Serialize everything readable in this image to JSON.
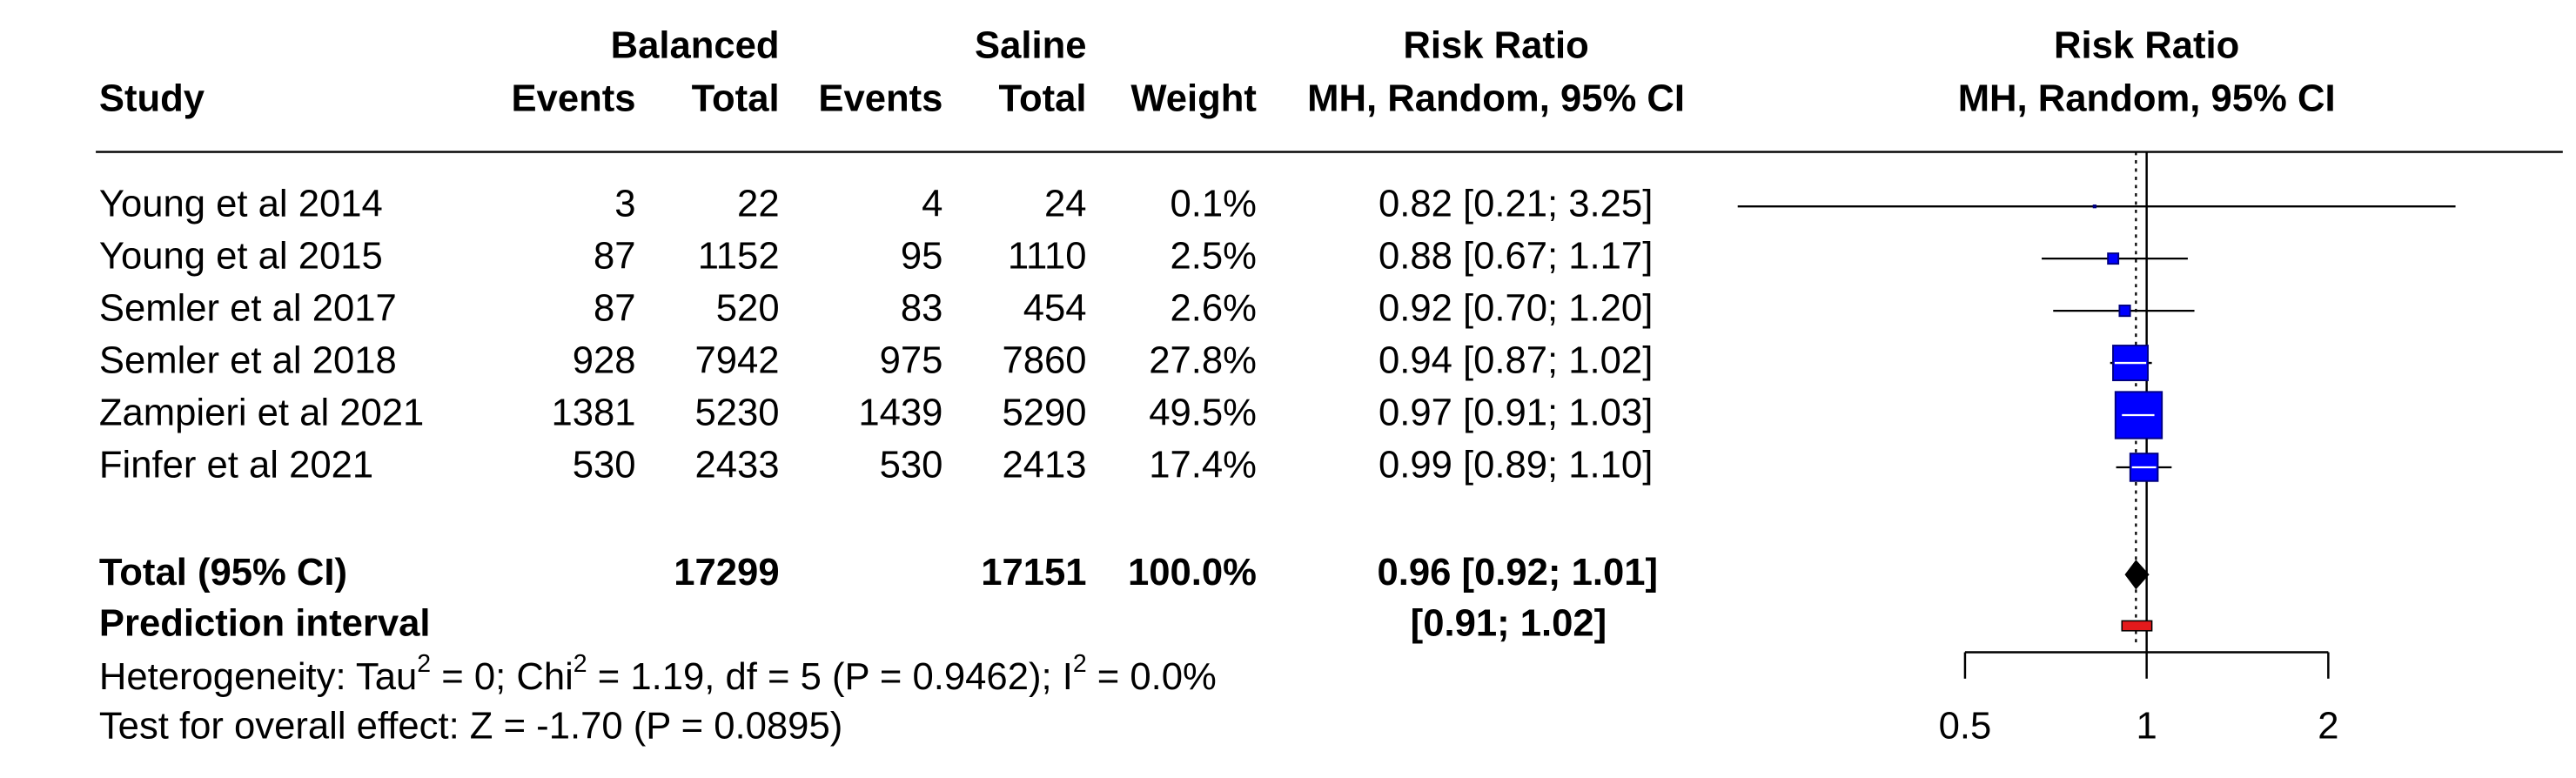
{
  "chart_data": {
    "type": "forest",
    "groups": [
      "Balanced",
      "Saline"
    ],
    "columns": [
      "Study",
      "Events",
      "Total",
      "Events",
      "Total",
      "Weight",
      "Risk Ratio",
      "MH, Random, 95% CI"
    ],
    "plot_title": [
      "Risk Ratio",
      "MH, Random, 95% CI"
    ],
    "studies": [
      "Young et al 2014",
      "Young et al 2015",
      "Semler et al 2017",
      "Semler et al 2018",
      "Zampieri et al 2021",
      "Finfer et al 2021"
    ],
    "events_a": [
      3,
      87,
      87,
      928,
      1381,
      530
    ],
    "total_a": [
      22,
      1152,
      520,
      7942,
      5230,
      2433
    ],
    "events_b": [
      4,
      95,
      83,
      975,
      1439,
      530
    ],
    "total_b": [
      24,
      1110,
      454,
      7860,
      5290,
      2413
    ],
    "weights": [
      0.1,
      2.5,
      2.6,
      27.8,
      49.5,
      17.4
    ],
    "weight_labels": [
      "0.1%",
      "2.5%",
      "2.6%",
      "27.8%",
      "49.5%",
      "17.4%"
    ],
    "rr": [
      0.82,
      0.88,
      0.92,
      0.94,
      0.97,
      0.99
    ],
    "lower": [
      0.21,
      0.67,
      0.7,
      0.87,
      0.91,
      0.89
    ],
    "upper": [
      3.25,
      1.17,
      1.2,
      1.02,
      1.03,
      1.1
    ],
    "ci_labels": [
      "0.82 [0.21; 3.25]",
      "0.88 [0.67; 1.17]",
      "0.92 [0.70; 1.20]",
      "0.94 [0.87; 1.02]",
      "0.97 [0.91; 1.03]",
      "0.99 [0.89; 1.10]"
    ],
    "total": {
      "name": "Total (95% CI)",
      "total_a": 17299,
      "total_b": 17151,
      "weight_label": "100.0%",
      "rr": 0.96,
      "lower": 0.92,
      "upper": 1.01,
      "ci_label": "0.96 [0.92; 1.01]"
    },
    "prediction": {
      "name": "Prediction interval",
      "lower": 0.91,
      "upper": 1.02,
      "ci_label": "[0.91; 1.02]"
    },
    "heterogeneity": [
      "Heterogeneity: Tau",
      "2",
      " = 0; Chi",
      "2",
      " = 1.19, df = 5 (P = 0.9462); I",
      "2",
      " = 0.0%"
    ],
    "overall_effect": "Test for overall effect: Z = -1.70 (P = 0.0895)",
    "log_x": true,
    "xlim": [
      0.5,
      2
    ],
    "xticks": [
      0.5,
      1,
      2
    ],
    "reference": 1,
    "square_color": "#0000ff",
    "diamond_color": "#000000",
    "prediction_color": "#e31a1c"
  }
}
